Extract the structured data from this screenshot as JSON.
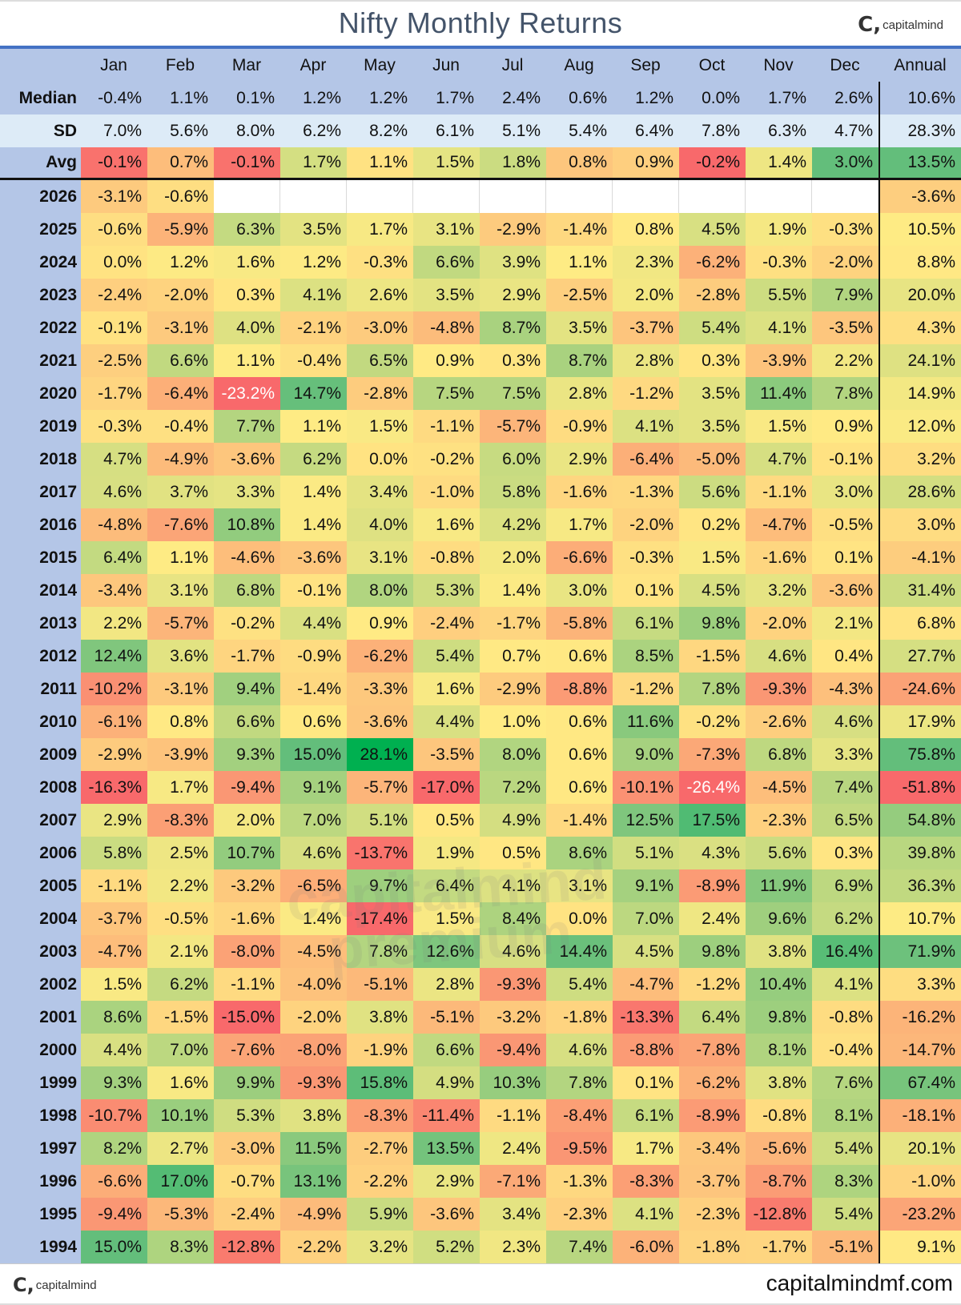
{
  "title": "Nifty Monthly Returns",
  "logo_text": "capitalmind",
  "footer_site": "capitalmindmf.com",
  "watermark": "capitalmind premium",
  "chart_data": {
    "type": "heatmap",
    "title": "Nifty Monthly Returns",
    "unit": "%",
    "columns": [
      "Jan",
      "Feb",
      "Mar",
      "Apr",
      "May",
      "Jun",
      "Jul",
      "Aug",
      "Sep",
      "Oct",
      "Nov",
      "Dec",
      "Annual"
    ],
    "stats": [
      {
        "label": "Median",
        "values": [
          -0.4,
          1.1,
          0.1,
          1.2,
          1.2,
          1.7,
          2.4,
          0.6,
          1.2,
          0.0,
          1.7,
          2.6,
          10.6
        ]
      },
      {
        "label": "SD",
        "values": [
          7.0,
          5.6,
          8.0,
          6.2,
          8.2,
          6.1,
          5.1,
          5.4,
          6.4,
          7.8,
          6.3,
          4.7,
          28.3
        ]
      },
      {
        "label": "Avg",
        "values": [
          -0.1,
          0.7,
          -0.1,
          1.7,
          1.1,
          1.5,
          1.8,
          0.8,
          0.9,
          -0.2,
          1.4,
          3.0,
          13.5
        ]
      }
    ],
    "rows": [
      {
        "year": "2026",
        "values": [
          -3.1,
          -0.6,
          null,
          null,
          null,
          null,
          null,
          null,
          null,
          null,
          null,
          null,
          -3.6
        ]
      },
      {
        "year": "2025",
        "values": [
          -0.6,
          -5.9,
          6.3,
          3.5,
          1.7,
          3.1,
          -2.9,
          -1.4,
          0.8,
          4.5,
          1.9,
          -0.3,
          10.5
        ]
      },
      {
        "year": "2024",
        "values": [
          0.0,
          1.2,
          1.6,
          1.2,
          -0.3,
          6.6,
          3.9,
          1.1,
          2.3,
          -6.2,
          -0.3,
          -2.0,
          8.8
        ]
      },
      {
        "year": "2023",
        "values": [
          -2.4,
          -2.0,
          0.3,
          4.1,
          2.6,
          3.5,
          2.9,
          -2.5,
          2.0,
          -2.8,
          5.5,
          7.9,
          20.0
        ]
      },
      {
        "year": "2022",
        "values": [
          -0.1,
          -3.1,
          4.0,
          -2.1,
          -3.0,
          -4.8,
          8.7,
          3.5,
          -3.7,
          5.4,
          4.1,
          -3.5,
          4.3
        ]
      },
      {
        "year": "2021",
        "values": [
          -2.5,
          6.6,
          1.1,
          -0.4,
          6.5,
          0.9,
          0.3,
          8.7,
          2.8,
          0.3,
          -3.9,
          2.2,
          24.1
        ]
      },
      {
        "year": "2020",
        "values": [
          -1.7,
          -6.4,
          -23.2,
          14.7,
          -2.8,
          7.5,
          7.5,
          2.8,
          -1.2,
          3.5,
          11.4,
          7.8,
          14.9
        ]
      },
      {
        "year": "2019",
        "values": [
          -0.3,
          -0.4,
          7.7,
          1.1,
          1.5,
          -1.1,
          -5.7,
          -0.9,
          4.1,
          3.5,
          1.5,
          0.9,
          12.0
        ]
      },
      {
        "year": "2018",
        "values": [
          4.7,
          -4.9,
          -3.6,
          6.2,
          0.0,
          -0.2,
          6.0,
          2.9,
          -6.4,
          -5.0,
          4.7,
          -0.1,
          3.2
        ]
      },
      {
        "year": "2017",
        "values": [
          4.6,
          3.7,
          3.3,
          1.4,
          3.4,
          -1.0,
          5.8,
          -1.6,
          -1.3,
          5.6,
          -1.1,
          3.0,
          28.6
        ]
      },
      {
        "year": "2016",
        "values": [
          -4.8,
          -7.6,
          10.8,
          1.4,
          4.0,
          1.6,
          4.2,
          1.7,
          -2.0,
          0.2,
          -4.7,
          -0.5,
          3.0
        ]
      },
      {
        "year": "2015",
        "values": [
          6.4,
          1.1,
          -4.6,
          -3.6,
          3.1,
          -0.8,
          2.0,
          -6.6,
          -0.3,
          1.5,
          -1.6,
          0.1,
          -4.1
        ]
      },
      {
        "year": "2014",
        "values": [
          -3.4,
          3.1,
          6.8,
          -0.1,
          8.0,
          5.3,
          1.4,
          3.0,
          0.1,
          4.5,
          3.2,
          -3.6,
          31.4
        ]
      },
      {
        "year": "2013",
        "values": [
          2.2,
          -5.7,
          -0.2,
          4.4,
          0.9,
          -2.4,
          -1.7,
          -5.8,
          6.1,
          9.8,
          -2.0,
          2.1,
          6.8
        ]
      },
      {
        "year": "2012",
        "values": [
          12.4,
          3.6,
          -1.7,
          -0.9,
          -6.2,
          5.4,
          0.7,
          0.6,
          8.5,
          -1.5,
          4.6,
          0.4,
          27.7
        ]
      },
      {
        "year": "2011",
        "values": [
          -10.2,
          -3.1,
          9.4,
          -1.4,
          -3.3,
          1.6,
          -2.9,
          -8.8,
          -1.2,
          7.8,
          -9.3,
          -4.3,
          -24.6
        ]
      },
      {
        "year": "2010",
        "values": [
          -6.1,
          0.8,
          6.6,
          0.6,
          -3.6,
          4.4,
          1.0,
          0.6,
          11.6,
          -0.2,
          -2.6,
          4.6,
          17.9
        ]
      },
      {
        "year": "2009",
        "values": [
          -2.9,
          -3.9,
          9.3,
          15.0,
          28.1,
          -3.5,
          8.0,
          0.6,
          9.0,
          -7.3,
          6.8,
          3.3,
          75.8
        ]
      },
      {
        "year": "2008",
        "values": [
          -16.3,
          1.7,
          -9.4,
          9.1,
          -5.7,
          -17.0,
          7.2,
          0.6,
          -10.1,
          -26.4,
          -4.5,
          7.4,
          -51.8
        ]
      },
      {
        "year": "2007",
        "values": [
          2.9,
          -8.3,
          2.0,
          7.0,
          5.1,
          0.5,
          4.9,
          -1.4,
          12.5,
          17.5,
          -2.3,
          6.5,
          54.8
        ]
      },
      {
        "year": "2006",
        "values": [
          5.8,
          2.5,
          10.7,
          4.6,
          -13.7,
          1.9,
          0.5,
          8.6,
          5.1,
          4.3,
          5.6,
          0.3,
          39.8
        ]
      },
      {
        "year": "2005",
        "values": [
          -1.1,
          2.2,
          -3.2,
          -6.5,
          9.7,
          6.4,
          4.1,
          3.1,
          9.1,
          -8.9,
          11.9,
          6.9,
          36.3
        ]
      },
      {
        "year": "2004",
        "values": [
          -3.7,
          -0.5,
          -1.6,
          1.4,
          -17.4,
          1.5,
          8.4,
          0.0,
          7.0,
          2.4,
          9.6,
          6.2,
          10.7
        ]
      },
      {
        "year": "2003",
        "values": [
          -4.7,
          2.1,
          -8.0,
          -4.5,
          7.8,
          12.6,
          4.6,
          14.4,
          4.5,
          9.8,
          3.8,
          16.4,
          71.9
        ]
      },
      {
        "year": "2002",
        "values": [
          1.5,
          6.2,
          -1.1,
          -4.0,
          -5.1,
          2.8,
          -9.3,
          5.4,
          -4.7,
          -1.2,
          10.4,
          4.1,
          3.3
        ]
      },
      {
        "year": "2001",
        "values": [
          8.6,
          -1.5,
          -15.0,
          -2.0,
          3.8,
          -5.1,
          -3.2,
          -1.8,
          -13.3,
          6.4,
          9.8,
          -0.8,
          -16.2
        ]
      },
      {
        "year": "2000",
        "values": [
          4.4,
          7.0,
          -7.6,
          -8.0,
          -1.9,
          6.6,
          -9.4,
          4.6,
          -8.8,
          -7.8,
          8.1,
          -0.4,
          -14.7
        ]
      },
      {
        "year": "1999",
        "values": [
          9.3,
          1.6,
          9.9,
          -9.3,
          15.8,
          4.9,
          10.3,
          7.8,
          0.1,
          -6.2,
          3.8,
          7.6,
          67.4
        ]
      },
      {
        "year": "1998",
        "values": [
          -10.7,
          10.1,
          5.3,
          3.8,
          -8.3,
          -11.4,
          -1.1,
          -8.4,
          6.1,
          -8.9,
          -0.8,
          8.1,
          -18.1
        ]
      },
      {
        "year": "1997",
        "values": [
          8.2,
          2.7,
          -3.0,
          11.5,
          -2.7,
          13.5,
          2.4,
          -9.5,
          1.7,
          -3.4,
          -5.6,
          5.4,
          20.1
        ]
      },
      {
        "year": "1996",
        "values": [
          -6.6,
          17.0,
          -0.7,
          13.1,
          -2.2,
          2.9,
          -7.1,
          -1.3,
          -8.3,
          -3.7,
          -8.7,
          8.3,
          -1.0
        ]
      },
      {
        "year": "1995",
        "values": [
          -9.4,
          -5.3,
          -2.4,
          -4.9,
          5.9,
          -3.6,
          3.4,
          -2.3,
          4.1,
          -2.3,
          -12.8,
          5.4,
          -23.2
        ]
      },
      {
        "year": "1994",
        "values": [
          15.0,
          8.3,
          -12.8,
          -2.2,
          3.2,
          5.2,
          2.3,
          7.4,
          -6.0,
          -1.8,
          -1.7,
          -5.1,
          9.1
        ]
      }
    ],
    "color_scale": {
      "low": "#F8696B",
      "mid": "#FFEB84",
      "high": "#63BE7B",
      "extreme_low": "#C00000",
      "extreme_high": "#00B050"
    },
    "colors": {
      "header": "#B4C6E7",
      "sd_row": "#DDEBF7",
      "title": "#44546A",
      "rule": "#4472C4"
    }
  }
}
